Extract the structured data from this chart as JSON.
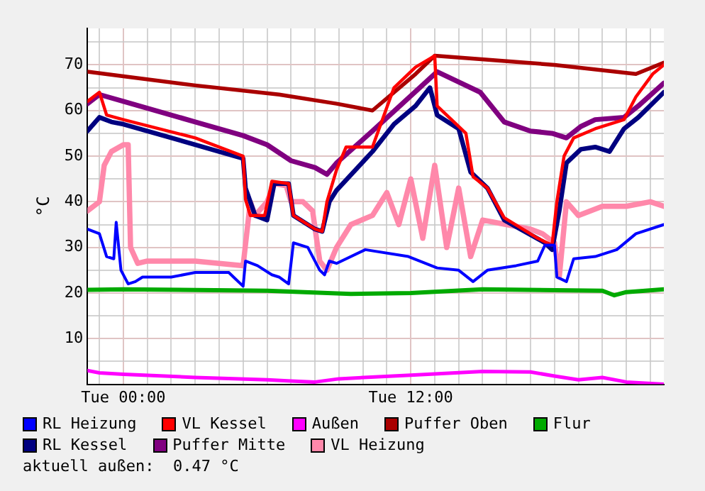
{
  "chart_data": {
    "type": "line",
    "ylabel": "°C",
    "legend": "bottom",
    "grid": true,
    "marker": "none",
    "line_style": "solid",
    "xlim": [
      "--01-01T22:30",
      "--01-02T22:34"
    ],
    "ylim": [
      0,
      78
    ],
    "xticks": [
      {
        "value": "--01-01T23:00",
        "label": null
      },
      {
        "value": "--01-02T00:00",
        "label": "Tue 00:00"
      },
      {
        "value": "--01-02T01:00",
        "label": null
      },
      {
        "value": "--01-02T02:00",
        "label": null
      },
      {
        "value": "--01-02T03:00",
        "label": null
      },
      {
        "value": "--01-02T04:00",
        "label": null
      },
      {
        "value": "--01-02T05:00",
        "label": null
      },
      {
        "value": "--01-02T06:00",
        "label": null
      },
      {
        "value": "--01-02T07:00",
        "label": null
      },
      {
        "value": "--01-02T08:00",
        "label": null
      },
      {
        "value": "--01-02T09:00",
        "label": null
      },
      {
        "value": "--01-02T10:00",
        "label": null
      },
      {
        "value": "--01-02T11:00",
        "label": null
      },
      {
        "value": "--01-02T12:00",
        "label": "Tue 12:00"
      },
      {
        "value": "--01-02T13:00",
        "label": null
      },
      {
        "value": "--01-02T14:00",
        "label": null
      },
      {
        "value": "--01-02T15:00",
        "label": null
      },
      {
        "value": "--01-02T16:00",
        "label": null
      },
      {
        "value": "--01-02T17:00",
        "label": null
      },
      {
        "value": "--01-02T18:00",
        "label": null
      },
      {
        "value": "--01-02T19:00",
        "label": null
      },
      {
        "value": "--01-02T20:00",
        "label": null
      },
      {
        "value": "--01-02T21:00",
        "label": null
      },
      {
        "value": "--01-02T22:00",
        "label": null
      }
    ],
    "yticks": [
      {
        "value": 0,
        "label": null
      },
      {
        "value": 5,
        "label": null
      },
      10,
      {
        "value": 15,
        "label": null
      },
      20,
      {
        "value": 25,
        "label": null
      },
      30,
      {
        "value": 35,
        "label": null
      },
      40,
      {
        "value": 45,
        "label": null
      },
      50,
      {
        "value": 55,
        "label": null
      },
      60,
      {
        "value": 65,
        "label": null
      },
      70,
      {
        "value": 75,
        "label": null
      }
    ],
    "annotations": [
      "aktuell außen:  0.47 °C"
    ],
    "series": [
      {
        "name": "RL Heizung",
        "color": "#0000ff",
        "x": [
          "--01-01T22:30",
          "--01-01T23:00",
          "--01-01T23:18",
          "--01-01T23:36",
          "--01-01T23:42",
          "--01-01T23:54",
          "--01-02T00:12",
          "--01-02T00:30",
          "--01-02T00:48",
          "--01-02T02:00",
          "--01-02T03:00",
          "--01-02T04:24",
          "--01-02T04:42",
          "--01-02T05:00",
          "--01-02T05:06",
          "--01-02T05:36",
          "--01-02T06:12",
          "--01-02T06:30",
          "--01-02T06:54",
          "--01-02T07:06",
          "--01-02T07:42",
          "--01-02T08:12",
          "--01-02T08:24",
          "--01-02T08:36",
          "--01-02T08:54",
          "--01-02T10:06",
          "--01-02T11:54",
          "--01-02T13:06",
          "--01-02T14:00",
          "--01-02T14:36",
          "--01-02T15:12",
          "--01-02T16:24",
          "--01-02T17:18",
          "--01-02T17:36",
          "--01-02T18:00",
          "--01-02T18:06",
          "--01-02T18:30",
          "--01-02T18:48",
          "--01-02T19:42",
          "--01-02T20:36",
          "--01-02T21:24",
          "--01-02T22:34"
        ],
        "values": [
          34,
          33,
          28,
          27.5,
          35.5,
          25,
          22,
          22.5,
          23.5,
          23.5,
          24.5,
          24.5,
          23,
          21.5,
          27,
          26,
          24,
          23.5,
          22,
          31,
          30,
          25,
          24,
          27,
          26.5,
          29.5,
          28,
          25.5,
          25,
          22.5,
          25,
          26,
          27,
          30.5,
          30.5,
          23.5,
          22.5,
          27.5,
          28,
          29.5,
          33,
          35
        ]
      },
      {
        "name": "VL Kessel",
        "color": "#ff0000",
        "x": [
          "--01-01T22:30",
          "--01-01T23:00",
          "--01-01T23:18",
          "--01-02T00:00",
          "--01-02T03:00",
          "--01-02T05:00",
          "--01-02T05:06",
          "--01-02T05:18",
          "--01-02T05:54",
          "--01-02T06:12",
          "--01-02T06:54",
          "--01-02T07:06",
          "--01-02T08:00",
          "--01-02T08:18",
          "--01-02T08:30",
          "--01-02T08:54",
          "--01-02T09:18",
          "--01-02T10:24",
          "--01-02T11:18",
          "--01-02T12:12",
          "--01-02T13:00",
          "--01-02T13:06",
          "--01-02T13:42",
          "--01-02T14:18",
          "--01-02T14:36",
          "--01-02T15:12",
          "--01-02T15:54",
          "--01-02T17:18",
          "--01-02T17:54",
          "--01-02T18:06",
          "--01-02T18:24",
          "--01-02T18:48",
          "--01-02T19:42",
          "--01-02T20:54",
          "--01-02T21:24",
          "--01-02T22:06",
          "--01-02T22:34"
        ],
        "values": [
          62,
          64,
          59,
          58,
          54,
          50,
          40.5,
          37,
          37,
          44.5,
          44,
          37,
          34,
          33.5,
          40,
          47,
          52,
          52,
          65,
          69.5,
          72,
          61,
          58,
          55,
          45.5,
          43,
          36.5,
          32,
          30.5,
          40,
          50,
          54,
          56,
          58,
          63,
          68,
          70
        ]
      },
      {
        "name": "Außen",
        "color": "#ff00ff",
        "x": [
          "--01-01T22:30",
          "--01-01T23:00",
          "--01-02T00:00",
          "--01-02T03:00",
          "--01-02T06:00",
          "--01-02T07:00",
          "--01-02T08:00",
          "--01-02T09:00",
          "--01-02T12:00",
          "--01-02T15:00",
          "--01-02T17:00",
          "--01-02T18:00",
          "--01-02T19:00",
          "--01-02T20:00",
          "--01-02T21:00",
          "--01-02T22:34"
        ],
        "values": [
          3,
          2.5,
          2.2,
          1.5,
          1,
          0.7,
          0.5,
          1.2,
          2,
          2.8,
          2.7,
          1.8,
          1,
          1.5,
          0.5,
          0
        ]
      },
      {
        "name": "Puffer Oben",
        "color": "#aa0000",
        "x": [
          "--01-01T22:30",
          "--01-02T00:00",
          "--01-02T03:00",
          "--01-02T06:30",
          "--01-02T08:54",
          "--01-02T10:24",
          "--01-02T11:18",
          "--01-02T12:12",
          "--01-02T13:00",
          "--01-02T18:00",
          "--01-02T21:24",
          "--01-02T22:34"
        ],
        "values": [
          68.5,
          67.5,
          65.5,
          63.5,
          61.5,
          60,
          64,
          68,
          72,
          70,
          68,
          70.5
        ]
      },
      {
        "name": "Flur",
        "color": "#00aa00",
        "x": [
          "--01-01T22:30",
          "--01-02T00:00",
          "--01-02T06:00",
          "--01-02T09:30",
          "--01-02T12:00",
          "--01-02T15:00",
          "--01-02T20:00",
          "--01-02T20:30",
          "--01-02T21:00",
          "--01-02T22:34"
        ],
        "values": [
          20.7,
          20.8,
          20.5,
          19.8,
          20,
          20.8,
          20.5,
          19.5,
          20.2,
          20.8
        ]
      },
      {
        "name": "RL Kessel",
        "color": "#000080",
        "x": [
          "--01-01T22:30",
          "--01-01T23:00",
          "--01-01T23:30",
          "--01-02T00:00",
          "--01-02T05:00",
          "--01-02T05:06",
          "--01-02T05:30",
          "--01-02T06:00",
          "--01-02T06:18",
          "--01-02T06:54",
          "--01-02T07:06",
          "--01-02T08:00",
          "--01-02T08:18",
          "--01-02T08:36",
          "--01-02T08:54",
          "--01-02T10:24",
          "--01-02T11:18",
          "--01-02T12:12",
          "--01-02T12:48",
          "--01-02T13:06",
          "--01-02T14:00",
          "--01-02T14:30",
          "--01-02T15:12",
          "--01-02T15:54",
          "--01-02T17:36",
          "--01-02T17:54",
          "--01-02T18:12",
          "--01-02T18:30",
          "--01-02T19:06",
          "--01-02T19:42",
          "--01-02T20:18",
          "--01-02T20:54",
          "--01-02T21:30",
          "--01-02T22:34"
        ],
        "values": [
          55.5,
          58.5,
          57.5,
          57,
          49.5,
          43,
          37,
          36,
          44,
          44,
          37,
          34,
          33.5,
          40,
          42.5,
          51,
          57,
          61,
          65,
          59,
          56,
          46.5,
          43,
          36,
          31,
          29.5,
          38,
          48.5,
          51.5,
          52,
          51,
          56,
          58.5,
          64
        ]
      },
      {
        "name": "Puffer Mitte",
        "color": "#800080",
        "x": [
          "--01-01T22:30",
          "--01-01T23:00",
          "--01-02T00:00",
          "--01-02T03:00",
          "--01-02T05:00",
          "--01-02T06:00",
          "--01-02T07:00",
          "--01-02T08:00",
          "--01-02T08:30",
          "--01-02T08:54",
          "--01-02T10:24",
          "--01-02T13:06",
          "--01-02T14:54",
          "--01-02T15:54",
          "--01-02T17:00",
          "--01-02T17:54",
          "--01-02T18:30",
          "--01-02T19:06",
          "--01-02T19:42",
          "--01-02T20:54",
          "--01-02T21:30",
          "--01-02T22:34"
        ],
        "values": [
          61.5,
          63.5,
          62,
          57.5,
          54.5,
          52.5,
          49,
          47.5,
          46,
          48.5,
          55.5,
          68.5,
          64,
          57.5,
          55.5,
          55,
          54,
          56.5,
          58,
          58.5,
          61,
          66
        ]
      },
      {
        "name": "VL Heizung",
        "color": "#ff88aa",
        "x": [
          "--01-01T22:30",
          "--01-01T23:00",
          "--01-01T23:12",
          "--01-01T23:30",
          "--01-02T00:00",
          "--01-02T00:12",
          "--01-02T00:18",
          "--01-02T00:36",
          "--01-02T01:00",
          "--01-02T03:00",
          "--01-02T05:00",
          "--01-02T05:18",
          "--01-02T05:30",
          "--01-02T06:00",
          "--01-02T06:18",
          "--01-02T06:48",
          "--01-02T07:00",
          "--01-02T07:30",
          "--01-02T07:54",
          "--01-02T08:12",
          "--01-02T08:30",
          "--01-02T08:54",
          "--01-02T09:30",
          "--01-02T10:24",
          "--01-02T11:00",
          "--01-02T11:30",
          "--01-02T12:00",
          "--01-02T12:30",
          "--01-02T13:00",
          "--01-02T13:30",
          "--01-02T14:00",
          "--01-02T14:30",
          "--01-02T15:00",
          "--01-02T16:00",
          "--01-02T17:00",
          "--01-02T17:30",
          "--01-02T18:00",
          "--01-02T18:12",
          "--01-02T18:30",
          "--01-02T19:00",
          "--01-02T20:00",
          "--01-02T21:00",
          "--01-02T22:00",
          "--01-02T22:34"
        ],
        "values": [
          38,
          40,
          48,
          51,
          52.5,
          52.5,
          30,
          26.5,
          27,
          27,
          26,
          40,
          37,
          40,
          44,
          43.5,
          40,
          40,
          38,
          27,
          25,
          30,
          35,
          37,
          42,
          35,
          45,
          32,
          48,
          30,
          43,
          28,
          36,
          35,
          34,
          33,
          31,
          23.5,
          40,
          37,
          39,
          39,
          40,
          39
        ]
      }
    ]
  }
}
